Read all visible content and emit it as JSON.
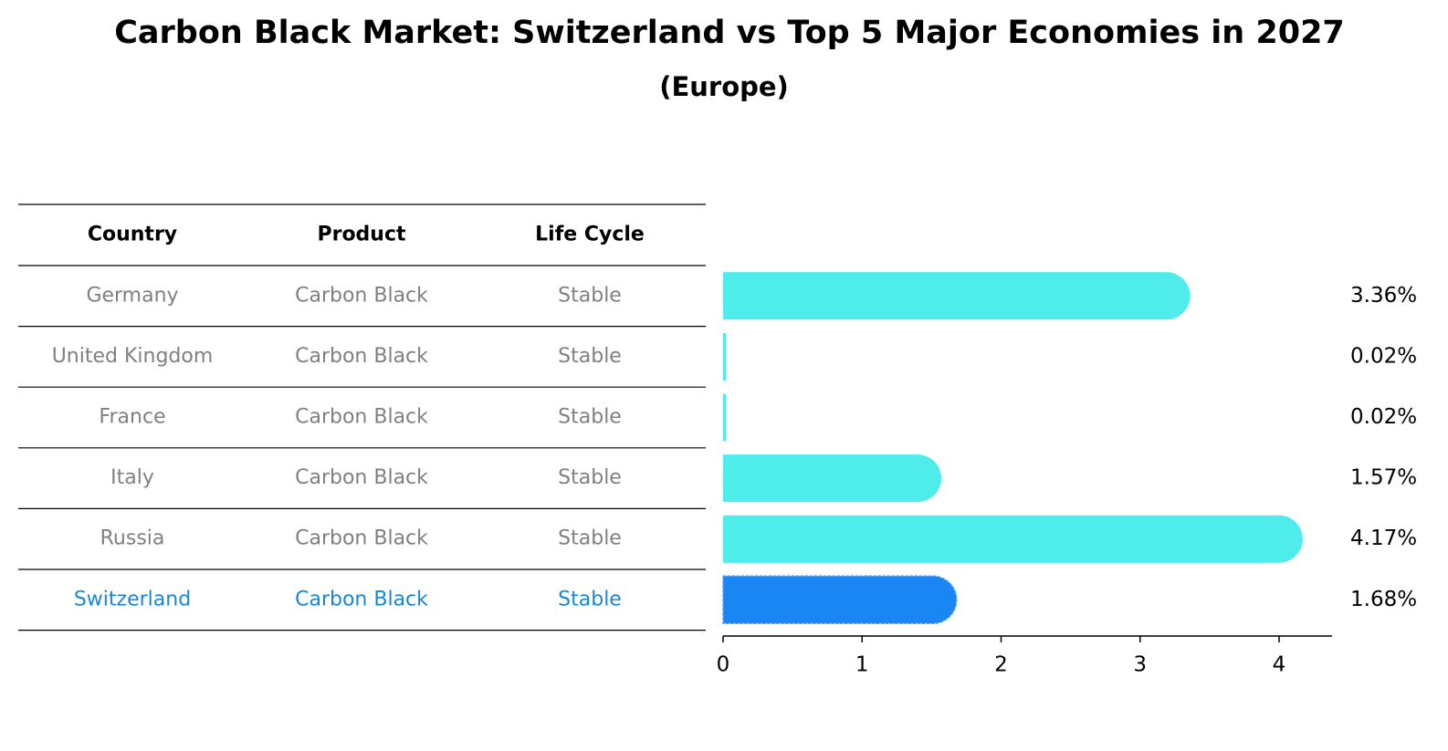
{
  "header": {
    "title": "Carbon Black Market: Switzerland vs Top 5 Major Economies in 2027",
    "subtitle": "(Europe)"
  },
  "table": {
    "columns": [
      "Country",
      "Product",
      "Life Cycle"
    ],
    "rows": [
      {
        "country": "Germany",
        "product": "Carbon Black",
        "life_cycle": "Stable",
        "highlight": false
      },
      {
        "country": "United Kingdom",
        "product": "Carbon Black",
        "life_cycle": "Stable",
        "highlight": false
      },
      {
        "country": "France",
        "product": "Carbon Black",
        "life_cycle": "Stable",
        "highlight": false
      },
      {
        "country": "Italy",
        "product": "Carbon Black",
        "life_cycle": "Stable",
        "highlight": false
      },
      {
        "country": "Russia",
        "product": "Carbon Black",
        "life_cycle": "Stable",
        "highlight": false
      },
      {
        "country": "Switzerland",
        "product": "Carbon Black",
        "life_cycle": "Stable",
        "highlight": true
      }
    ]
  },
  "chart_data": {
    "type": "bar",
    "orientation": "horizontal",
    "categories": [
      "Germany",
      "United Kingdom",
      "France",
      "Italy",
      "Russia",
      "Switzerland"
    ],
    "values": [
      3.36,
      0.02,
      0.02,
      1.57,
      4.17,
      1.68
    ],
    "value_labels": [
      "3.36%",
      "0.02%",
      "0.02%",
      "1.57%",
      "4.17%",
      "1.68%"
    ],
    "xticks": [
      0,
      1,
      2,
      3,
      4
    ],
    "xlim": [
      0,
      4.38
    ],
    "xlabel": "",
    "ylabel": "",
    "grid": false,
    "colors": {
      "bar": "#4EECEA",
      "highlight_bar": "#1A86F4",
      "muted_text": "#808080",
      "highlight_text": "#1A86D6",
      "line": "#000000"
    }
  }
}
